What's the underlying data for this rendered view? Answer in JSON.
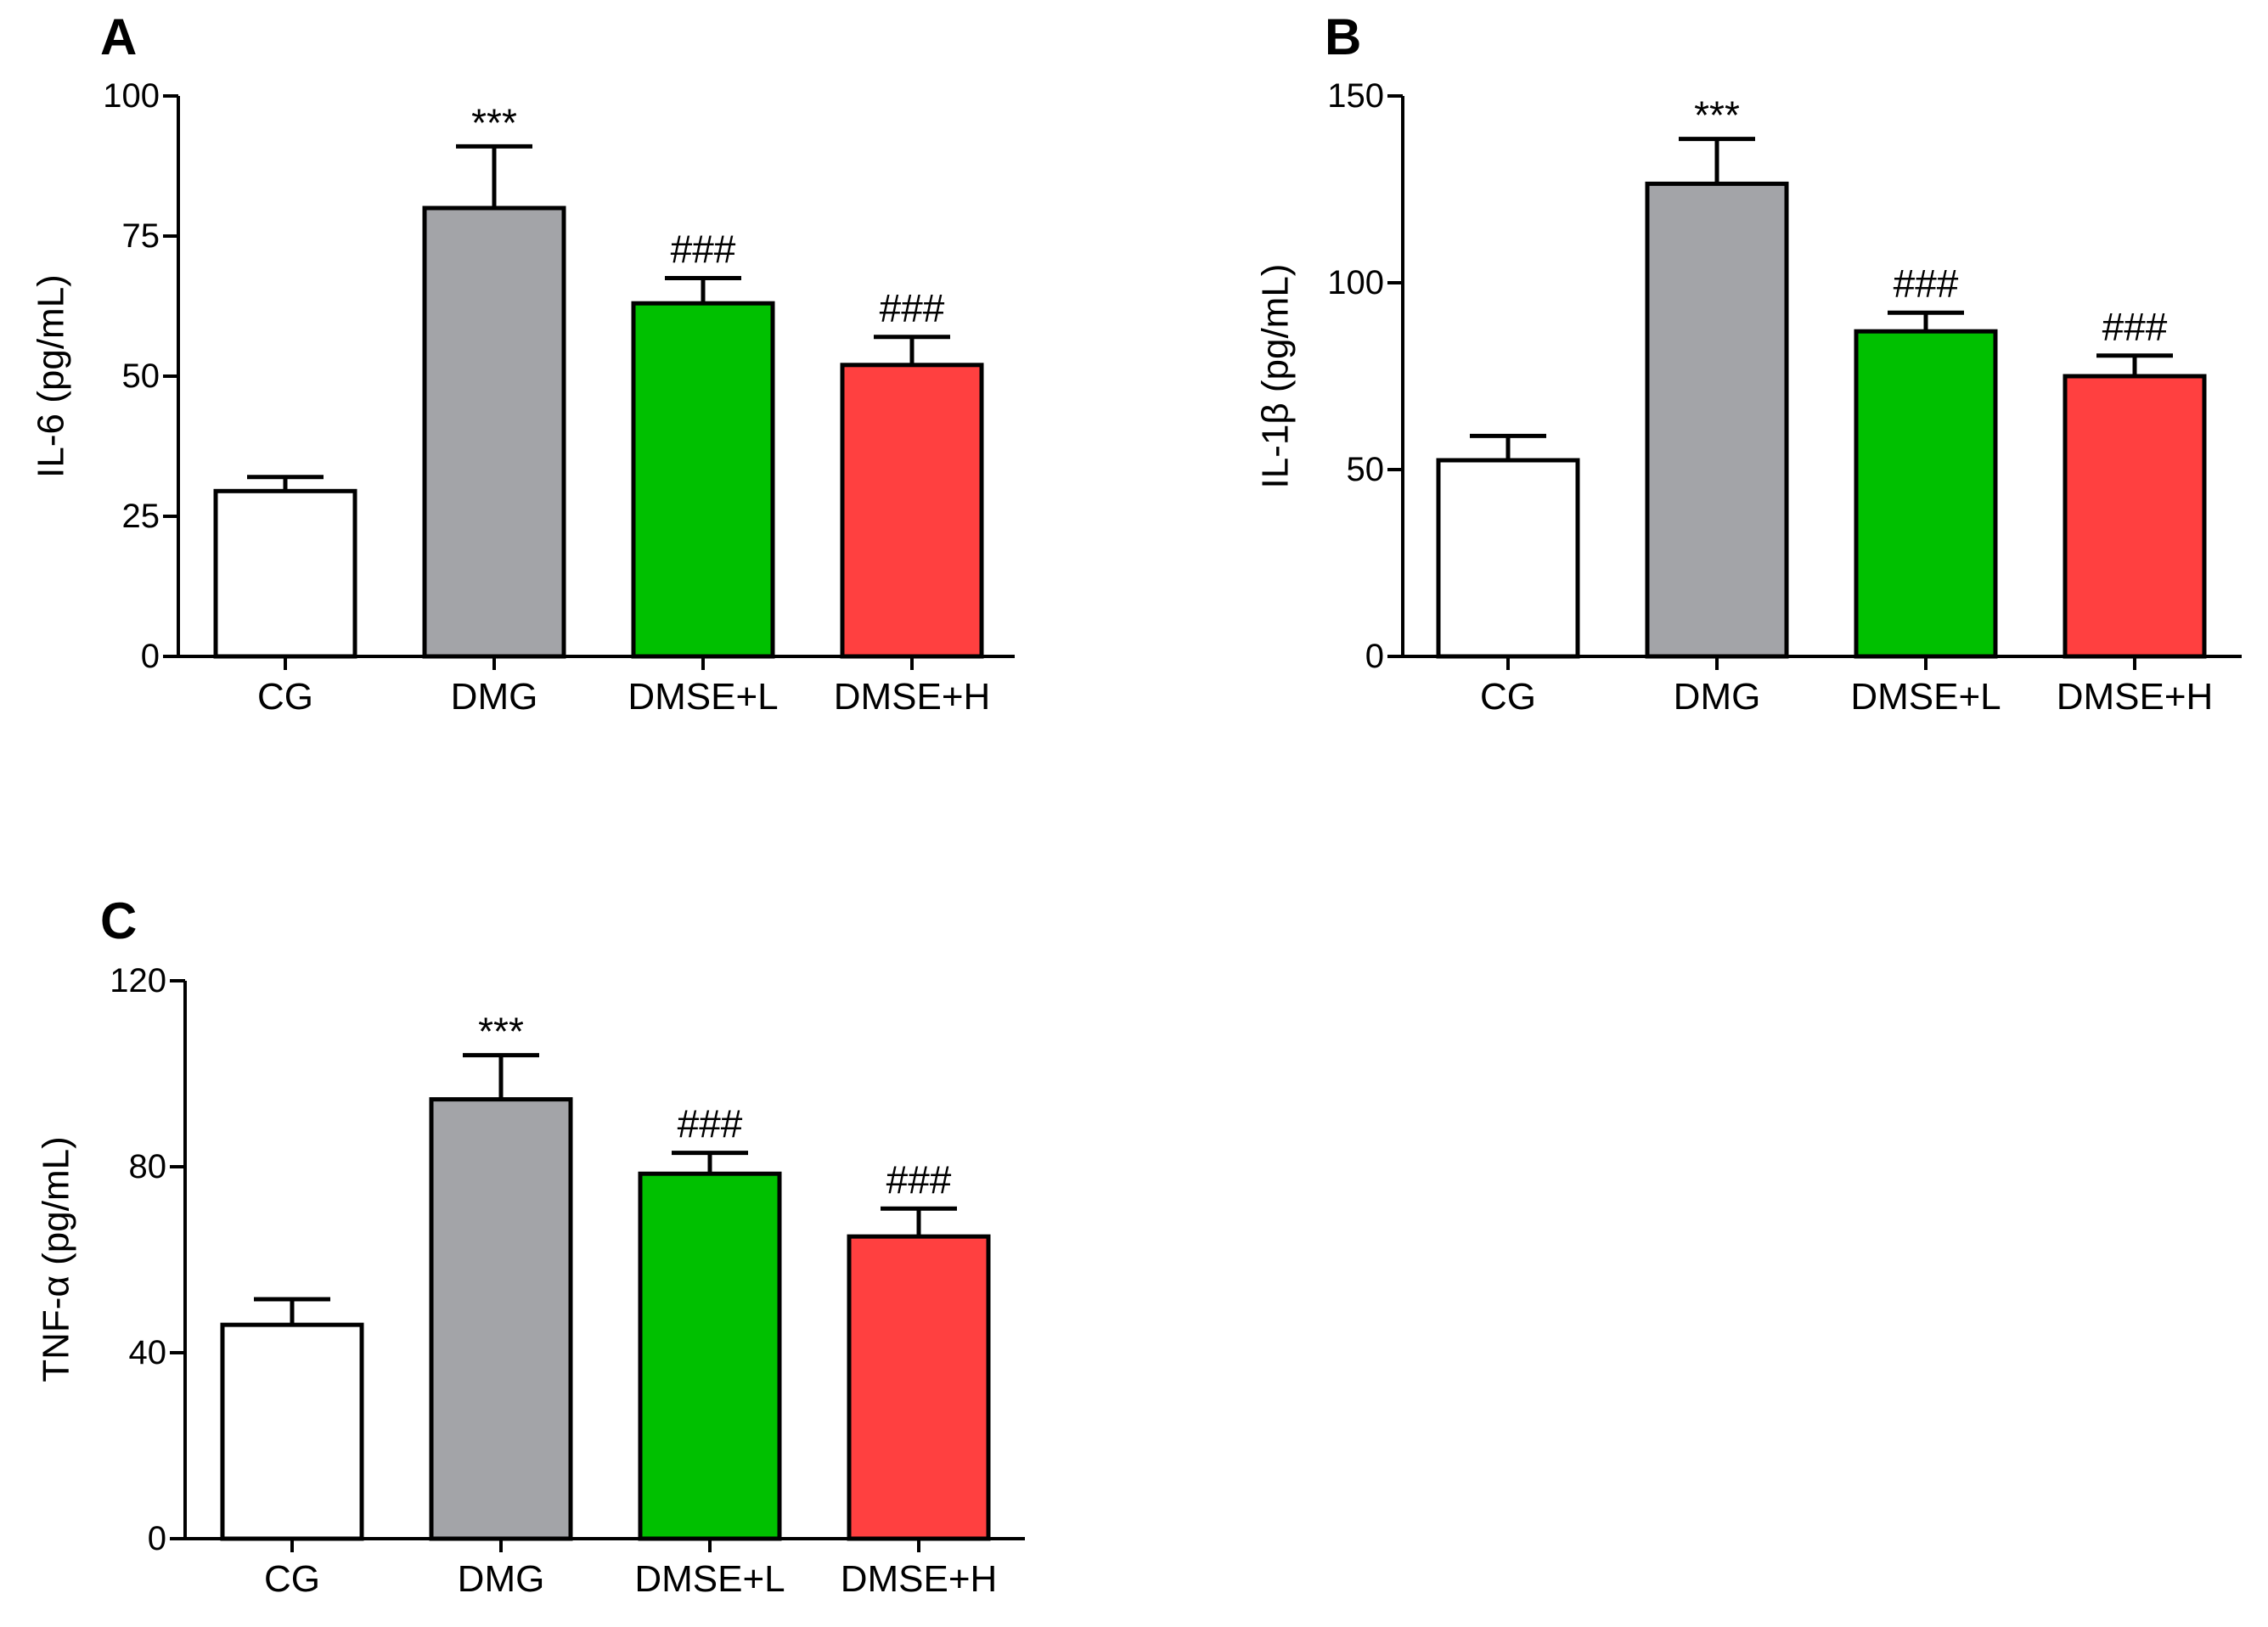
{
  "chart_data": [
    {
      "panel": "A",
      "type": "bar",
      "ylabel": "IL-6 (pg/mL)",
      "categories": [
        "CG",
        "DMG",
        "DMSE+L",
        "DMSE+H"
      ],
      "values": [
        29.5,
        80,
        63,
        52
      ],
      "errors": [
        2.5,
        11,
        4.5,
        5
      ],
      "annotations": [
        "",
        "***",
        "###",
        "###"
      ],
      "colors": [
        "#ffffff",
        "#a3a4a8",
        "#00c000",
        "#ff4040"
      ],
      "ylim": [
        0,
        100
      ],
      "yticks": [
        0,
        25,
        50,
        75,
        100
      ],
      "grid": false
    },
    {
      "panel": "B",
      "type": "bar",
      "ylabel": "IL-1β (pg/mL)",
      "categories": [
        "CG",
        "DMG",
        "DMSE+L",
        "DMSE+H"
      ],
      "values": [
        52.5,
        126.5,
        87,
        75
      ],
      "errors": [
        6.5,
        12,
        5,
        5.5
      ],
      "annotations": [
        "",
        "***",
        "###",
        "###"
      ],
      "colors": [
        "#ffffff",
        "#a3a4a8",
        "#00c000",
        "#ff4040"
      ],
      "ylim": [
        0,
        150
      ],
      "yticks": [
        0,
        50,
        100,
        150
      ],
      "grid": false
    },
    {
      "panel": "C",
      "type": "bar",
      "ylabel": "TNF-α (pg/mL)",
      "categories": [
        "CG",
        "DMG",
        "DMSE+L",
        "DMSE+H"
      ],
      "values": [
        46,
        94.5,
        78.5,
        65
      ],
      "errors": [
        5.5,
        9.5,
        4.5,
        6
      ],
      "annotations": [
        "",
        "***",
        "###",
        "###"
      ],
      "colors": [
        "#ffffff",
        "#a3a4a8",
        "#00c000",
        "#ff4040"
      ],
      "ylim": [
        0,
        120
      ],
      "yticks": [
        0,
        40,
        80,
        120
      ],
      "grid": false
    }
  ]
}
